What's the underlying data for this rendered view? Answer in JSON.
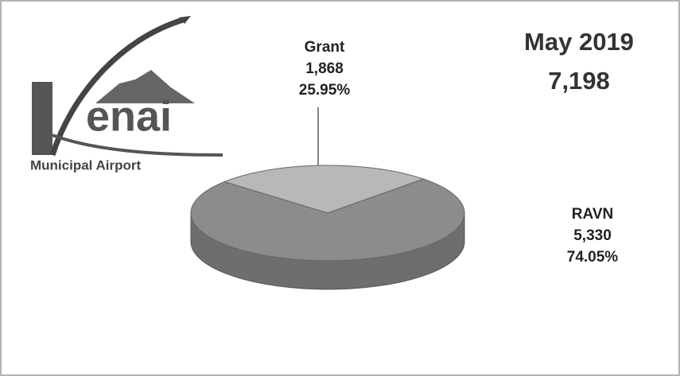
{
  "chart_data": {
    "type": "pie3d",
    "title": "May 2019",
    "subtitle": "7,198",
    "categories": [
      "Grant",
      "RAVN"
    ],
    "values": [
      1868,
      5330
    ],
    "value_labels": [
      "1,868",
      "5,330"
    ],
    "percentages": [
      25.95,
      74.05
    ],
    "percentage_labels": [
      "25.95%",
      "74.05%"
    ],
    "colors": [
      "#b8b8b8",
      "#8c8c8c"
    ]
  },
  "logo": {
    "text": "enai",
    "subtitle": "Municipal Airport"
  }
}
